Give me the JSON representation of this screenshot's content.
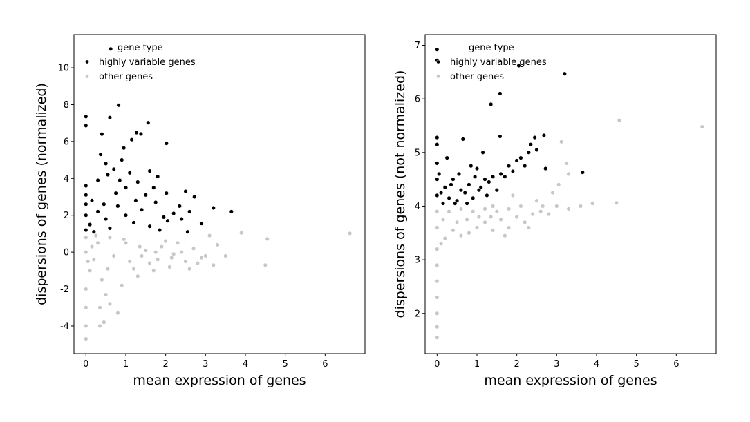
{
  "chart_data": [
    {
      "type": "scatter",
      "title": "",
      "xlabel": "mean expression of genes",
      "ylabel": "dispersions of genes (normalized)",
      "xlim": [
        -0.3,
        7.0
      ],
      "ylim": [
        -5.5,
        11.8
      ],
      "xticks": [
        0,
        1,
        2,
        3,
        4,
        5,
        6
      ],
      "yticks": [
        -4,
        -2,
        0,
        2,
        4,
        6,
        8,
        10
      ],
      "grid": false,
      "legend": {
        "title": "gene type",
        "position": "top-left",
        "entries": [
          "highly variable genes",
          "other genes"
        ]
      },
      "series": [
        {
          "name": "highly variable genes",
          "color": "#000000",
          "points": [
            [
              0.62,
              11.02
            ],
            [
              0.0,
              7.35
            ],
            [
              0.0,
              6.86
            ],
            [
              0.82,
              7.97
            ],
            [
              0.6,
              7.3
            ],
            [
              1.56,
              7.02
            ],
            [
              0.4,
              6.4
            ],
            [
              1.27,
              6.48
            ],
            [
              1.38,
              6.41
            ],
            [
              1.15,
              6.1
            ],
            [
              2.02,
              5.9
            ],
            [
              0.95,
              5.65
            ],
            [
              0.37,
              5.3
            ],
            [
              0.9,
              5.0
            ],
            [
              0.5,
              4.8
            ],
            [
              1.6,
              4.4
            ],
            [
              1.8,
              4.1
            ],
            [
              0.0,
              3.6
            ],
            [
              2.5,
              3.3
            ],
            [
              2.72,
              3.0
            ],
            [
              2.02,
              3.2
            ],
            [
              3.2,
              2.4
            ],
            [
              3.65,
              2.2
            ],
            [
              2.35,
              2.5
            ],
            [
              2.6,
              2.2
            ],
            [
              2.9,
              1.55
            ],
            [
              2.4,
              1.8
            ],
            [
              1.95,
              1.9
            ],
            [
              1.3,
              3.8
            ],
            [
              1.1,
              4.3
            ],
            [
              0.7,
              4.5
            ],
            [
              0.3,
              3.9
            ],
            [
              1.0,
              3.5
            ],
            [
              1.5,
              3.1
            ],
            [
              1.75,
              2.7
            ],
            [
              2.2,
              2.1
            ],
            [
              2.05,
              1.7
            ],
            [
              0.0,
              1.2
            ],
            [
              0.1,
              1.5
            ],
            [
              0.3,
              2.2
            ],
            [
              0.5,
              1.8
            ],
            [
              0.8,
              2.5
            ],
            [
              1.2,
              1.6
            ],
            [
              1.4,
              2.3
            ],
            [
              0.2,
              1.1
            ],
            [
              0.6,
              1.3
            ],
            [
              0.0,
              2.0
            ],
            [
              0.0,
              2.6
            ],
            [
              0.0,
              3.1
            ],
            [
              0.15,
              2.8
            ],
            [
              0.45,
              2.6
            ],
            [
              0.75,
              3.2
            ],
            [
              1.0,
              2.0
            ],
            [
              1.6,
              1.4
            ],
            [
              1.85,
              1.2
            ],
            [
              2.55,
              1.1
            ],
            [
              1.7,
              3.5
            ],
            [
              0.85,
              3.9
            ],
            [
              0.55,
              4.2
            ],
            [
              1.25,
              2.8
            ]
          ]
        },
        {
          "name": "other genes",
          "color": "#c7c7c7",
          "points": [
            [
              6.62,
              1.02
            ],
            [
              4.55,
              0.72
            ],
            [
              4.5,
              -0.7
            ],
            [
              3.9,
              1.05
            ],
            [
              3.5,
              -0.2
            ],
            [
              3.3,
              0.4
            ],
            [
              3.2,
              -0.7
            ],
            [
              3.1,
              0.9
            ],
            [
              2.9,
              -0.3
            ],
            [
              2.7,
              0.2
            ],
            [
              2.5,
              -0.5
            ],
            [
              2.3,
              0.5
            ],
            [
              2.1,
              -0.8
            ],
            [
              1.9,
              0.3
            ],
            [
              1.7,
              -1.0
            ],
            [
              1.5,
              0.1
            ],
            [
              1.3,
              -1.3
            ],
            [
              1.1,
              -0.5
            ],
            [
              0.9,
              -1.8
            ],
            [
              0.7,
              -0.2
            ],
            [
              0.5,
              -2.3
            ],
            [
              0.35,
              -3.0
            ],
            [
              0.45,
              -3.8
            ],
            [
              0.35,
              -4.0
            ],
            [
              0.8,
              -3.3
            ],
            [
              0.3,
              0.5
            ],
            [
              0.2,
              -0.4
            ],
            [
              0.1,
              -1.0
            ],
            [
              0.0,
              -2.0
            ],
            [
              0.0,
              -3.0
            ],
            [
              0.0,
              -4.0
            ],
            [
              0.0,
              -4.7
            ],
            [
              0.0,
              0.0
            ],
            [
              0.0,
              0.8
            ],
            [
              0.6,
              0.8
            ],
            [
              1.0,
              0.5
            ],
            [
              1.4,
              -0.2
            ],
            [
              1.8,
              -0.4
            ],
            [
              2.2,
              -0.1
            ],
            [
              2.6,
              -0.9
            ],
            [
              1.2,
              -0.9
            ],
            [
              0.4,
              -1.5
            ],
            [
              0.6,
              -2.8
            ],
            [
              1.6,
              -0.6
            ],
            [
              2.0,
              0.6
            ],
            [
              2.4,
              0.0
            ],
            [
              2.8,
              -0.6
            ],
            [
              3.0,
              -0.2
            ],
            [
              0.25,
              0.9
            ],
            [
              0.55,
              -0.9
            ],
            [
              0.95,
              0.7
            ],
            [
              1.35,
              0.3
            ],
            [
              1.75,
              0.0
            ],
            [
              2.15,
              -0.3
            ],
            [
              0.15,
              0.3
            ],
            [
              0.05,
              -0.5
            ]
          ]
        }
      ]
    },
    {
      "type": "scatter",
      "title": "",
      "xlabel": "mean expression of genes",
      "ylabel": "dispersions of genes (not normalized)",
      "xlim": [
        -0.3,
        7.0
      ],
      "ylim": [
        1.25,
        7.2
      ],
      "xticks": [
        0,
        1,
        2,
        3,
        4,
        5,
        6
      ],
      "yticks": [
        2,
        3,
        4,
        5,
        6,
        7
      ],
      "grid": false,
      "legend": {
        "title": "gene type",
        "position": "top-left",
        "entries": [
          "highly variable genes",
          "other genes"
        ]
      },
      "series": [
        {
          "name": "highly variable genes",
          "color": "#000000",
          "points": [
            [
              0.0,
              6.92
            ],
            [
              0.0,
              6.72
            ],
            [
              2.05,
              6.62
            ],
            [
              3.2,
              6.47
            ],
            [
              1.58,
              6.1
            ],
            [
              1.35,
              5.9
            ],
            [
              0.0,
              5.28
            ],
            [
              0.0,
              5.15
            ],
            [
              0.65,
              5.25
            ],
            [
              1.58,
              5.3
            ],
            [
              2.68,
              5.32
            ],
            [
              2.45,
              5.28
            ],
            [
              3.65,
              4.63
            ],
            [
              2.72,
              4.7
            ],
            [
              2.3,
              5.0
            ],
            [
              2.0,
              4.85
            ],
            [
              1.8,
              4.75
            ],
            [
              1.6,
              4.6
            ],
            [
              1.4,
              4.55
            ],
            [
              1.2,
              4.5
            ],
            [
              1.0,
              4.7
            ],
            [
              0.8,
              4.4
            ],
            [
              0.6,
              4.3
            ],
            [
              0.4,
              4.5
            ],
            [
              0.2,
              4.35
            ],
            [
              0.0,
              4.8
            ],
            [
              0.0,
              4.5
            ],
            [
              0.0,
              4.2
            ],
            [
              0.05,
              4.6
            ],
            [
              0.1,
              4.25
            ],
            [
              0.3,
              4.15
            ],
            [
              0.5,
              4.1
            ],
            [
              0.7,
              4.25
            ],
            [
              0.9,
              4.15
            ],
            [
              1.1,
              4.35
            ],
            [
              1.3,
              4.45
            ],
            [
              1.5,
              4.3
            ],
            [
              1.7,
              4.55
            ],
            [
              1.9,
              4.65
            ],
            [
              2.1,
              4.9
            ],
            [
              2.2,
              4.75
            ],
            [
              2.5,
              5.05
            ],
            [
              0.15,
              4.05
            ],
            [
              0.45,
              4.05
            ],
            [
              0.75,
              4.05
            ],
            [
              1.05,
              4.3
            ],
            [
              1.25,
              4.2
            ],
            [
              0.25,
              4.9
            ],
            [
              0.85,
              4.75
            ],
            [
              1.15,
              5.0
            ],
            [
              2.35,
              5.15
            ],
            [
              0.55,
              4.6
            ],
            [
              0.35,
              4.4
            ],
            [
              0.95,
              4.55
            ]
          ]
        },
        {
          "name": "other genes",
          "color": "#c7c7c7",
          "points": [
            [
              6.65,
              5.48
            ],
            [
              4.57,
              5.6
            ],
            [
              3.12,
              5.2
            ],
            [
              4.5,
              4.06
            ],
            [
              3.25,
              4.8
            ],
            [
              3.9,
              4.05
            ],
            [
              3.6,
              4.0
            ],
            [
              3.3,
              3.95
            ],
            [
              3.0,
              4.0
            ],
            [
              2.8,
              3.85
            ],
            [
              2.6,
              3.9
            ],
            [
              2.4,
              3.85
            ],
            [
              2.2,
              3.7
            ],
            [
              2.0,
              3.8
            ],
            [
              1.8,
              3.6
            ],
            [
              1.6,
              3.75
            ],
            [
              1.4,
              3.55
            ],
            [
              1.2,
              3.7
            ],
            [
              1.0,
              3.6
            ],
            [
              0.8,
              3.5
            ],
            [
              0.6,
              3.45
            ],
            [
              0.4,
              3.55
            ],
            [
              0.2,
              3.4
            ],
            [
              0.1,
              3.3
            ],
            [
              0.0,
              3.2
            ],
            [
              0.0,
              2.9
            ],
            [
              0.0,
              2.6
            ],
            [
              0.0,
              2.3
            ],
            [
              0.0,
              2.0
            ],
            [
              0.0,
              1.75
            ],
            [
              0.0,
              1.55
            ],
            [
              0.0,
              3.6
            ],
            [
              0.0,
              3.9
            ],
            [
              0.3,
              3.9
            ],
            [
              0.6,
              3.95
            ],
            [
              0.9,
              3.9
            ],
            [
              1.2,
              3.95
            ],
            [
              1.5,
              3.9
            ],
            [
              1.8,
              3.95
            ],
            [
              2.1,
              4.0
            ],
            [
              2.5,
              4.1
            ],
            [
              2.9,
              4.25
            ],
            [
              3.3,
              4.6
            ],
            [
              3.05,
              4.4
            ],
            [
              1.9,
              4.2
            ],
            [
              1.4,
              4.0
            ],
            [
              2.3,
              3.6
            ],
            [
              1.7,
              3.45
            ],
            [
              0.5,
              3.7
            ],
            [
              0.15,
              3.75
            ],
            [
              0.75,
              3.75
            ],
            [
              1.05,
              3.8
            ],
            [
              1.35,
              3.8
            ],
            [
              2.65,
              4.0
            ]
          ]
        }
      ]
    }
  ]
}
